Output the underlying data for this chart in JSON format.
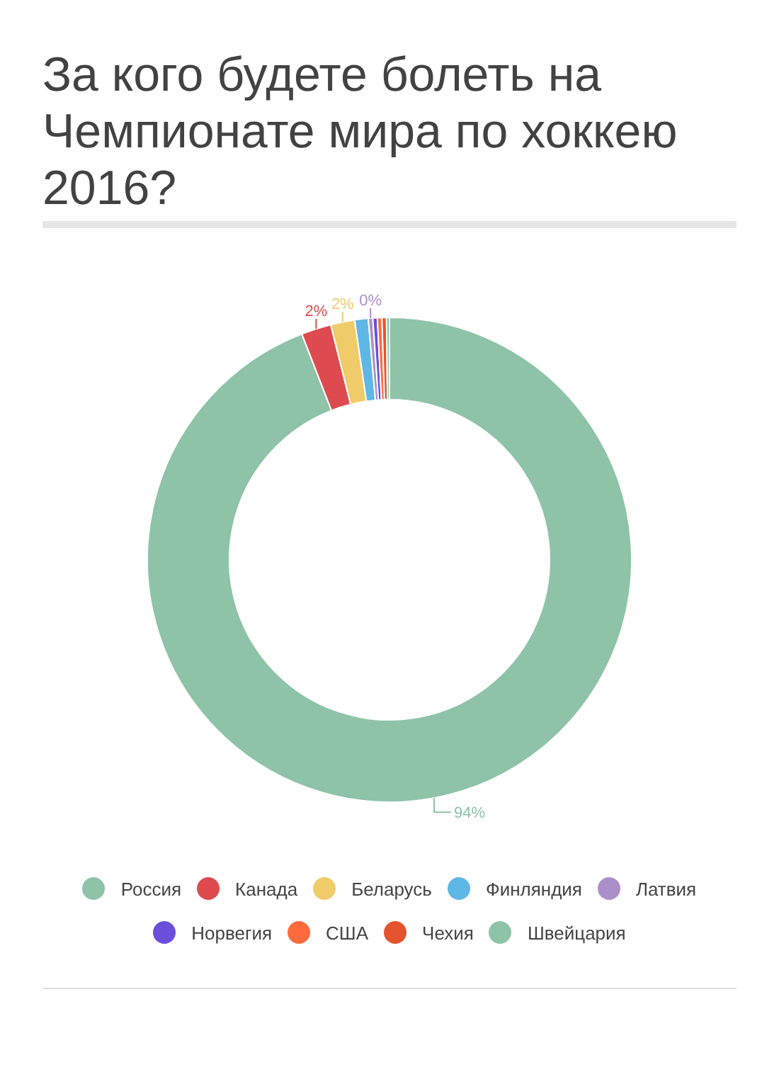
{
  "chart_data": {
    "type": "donut",
    "title": "За кого будете болеть на Чемпионате мира по хоккею 2016?",
    "categories": [
      "Россия",
      "Канада",
      "Беларусь",
      "Финляндия",
      "Латвия",
      "Норвегия",
      "США",
      "Чехия",
      "Швейцария"
    ],
    "values": [
      94.1,
      2.0,
      1.6,
      0.9,
      0.3,
      0.3,
      0.3,
      0.3,
      0.2
    ],
    "colors": [
      "#8ec3a7",
      "#dd4b50",
      "#f0cb69",
      "#5fb7e5",
      "#ab8fc9",
      "#6a4fdc",
      "#ff6a3d",
      "#e3532d",
      "#8ec3a7"
    ],
    "value_labels": [
      "94%",
      "2%",
      "2%",
      null,
      "0%",
      null,
      null,
      null,
      null
    ],
    "legend": "bottom"
  }
}
